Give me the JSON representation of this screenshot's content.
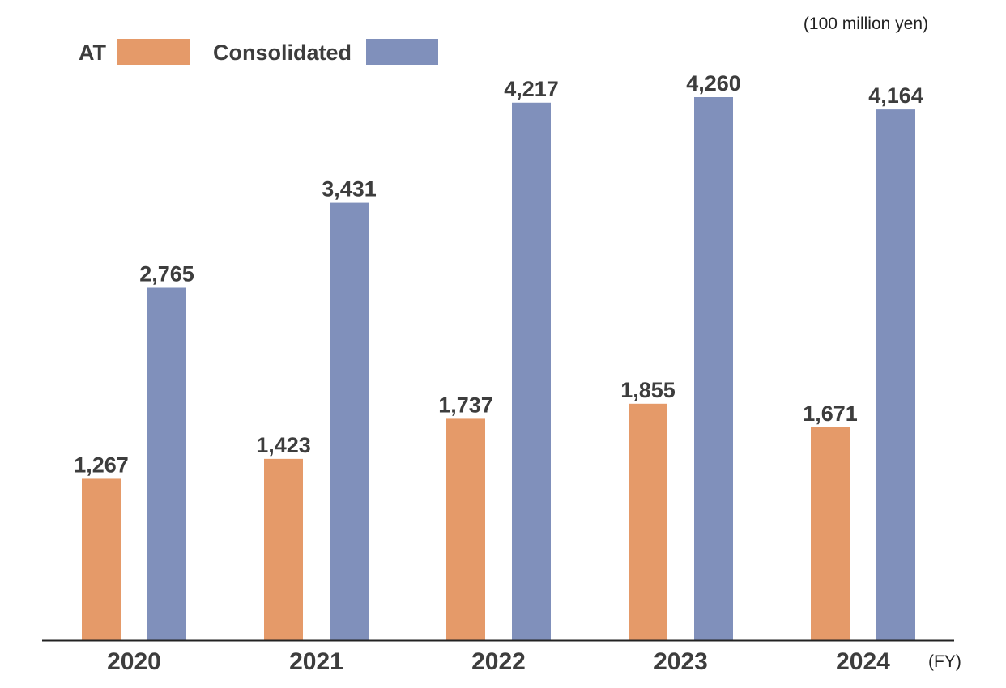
{
  "chart_data": {
    "type": "bar",
    "unit_label": "(100 million yen)",
    "x_unit_label": "(FY)",
    "categories": [
      "2020",
      "2021",
      "2022",
      "2023",
      "2024"
    ],
    "series": [
      {
        "name": "AT",
        "color": "#e59a69",
        "values": [
          1267,
          1423,
          1737,
          1855,
          1671
        ],
        "labels": [
          "1,267",
          "1,423",
          "1,737",
          "1,855",
          "1,671"
        ]
      },
      {
        "name": "Consolidated",
        "color": "#8090bb",
        "values": [
          2765,
          3431,
          4217,
          4260,
          4164
        ],
        "labels": [
          "2,765",
          "3,431",
          "4,217",
          "4,260",
          "4,164"
        ]
      }
    ],
    "ylim": [
      0,
      4500
    ],
    "grid": false,
    "legend_position": "top-left"
  }
}
